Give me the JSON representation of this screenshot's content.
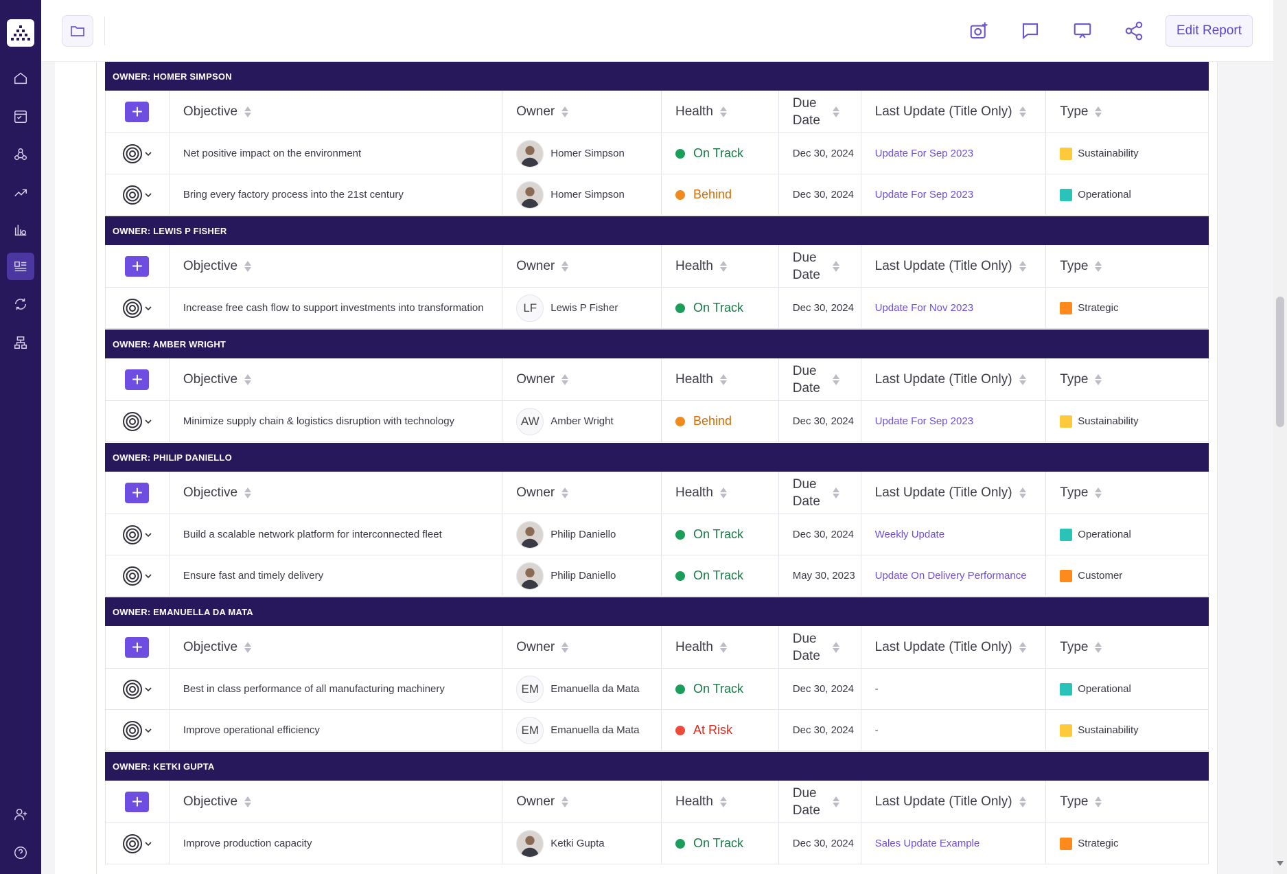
{
  "toolbar": {
    "edit_label": "Edit Report"
  },
  "columns": {
    "objective": "Objective",
    "owner": "Owner",
    "health": "Health",
    "due_line1": "Due",
    "due_line2": "Date",
    "last_update": "Last Update (Title Only)",
    "type": "Type"
  },
  "groups": [
    {
      "title": "OWNER: HOMER SIMPSON",
      "rows": [
        {
          "objective": "Net positive impact on the environment",
          "owner": "Homer Simpson",
          "avatar": "photo",
          "health": "On Track",
          "due": "Dec 30, 2024",
          "update": "Update For Sep 2023",
          "type": "Sustainability"
        },
        {
          "objective": "Bring every factory process into the 21st century",
          "owner": "Homer Simpson",
          "avatar": "photo",
          "health": "Behind",
          "due": "Dec 30, 2024",
          "update": "Update For Sep 2023",
          "type": "Operational"
        }
      ]
    },
    {
      "title": "OWNER: LEWIS P FISHER",
      "rows": [
        {
          "objective": "Increase free cash flow to support investments into transformation",
          "owner": "Lewis P Fisher",
          "avatar": "LF",
          "health": "On Track",
          "due": "Dec 30, 2024",
          "update": "Update For Nov 2023",
          "type": "Strategic"
        }
      ]
    },
    {
      "title": "OWNER: AMBER WRIGHT",
      "rows": [
        {
          "objective": "Minimize supply chain & logistics disruption with technology",
          "owner": "Amber Wright",
          "avatar": "AW",
          "health": "Behind",
          "due": "Dec 30, 2024",
          "update": "Update For Sep 2023",
          "type": "Sustainability"
        }
      ]
    },
    {
      "title": "OWNER: PHILIP DANIELLO",
      "rows": [
        {
          "objective": "Build a scalable network platform for interconnected fleet",
          "owner": "Philip Daniello",
          "avatar": "photo",
          "health": "On Track",
          "due": "Dec 30, 2024",
          "update": "Weekly Update",
          "type": "Operational"
        },
        {
          "objective": "Ensure fast and timely delivery",
          "owner": "Philip Daniello",
          "avatar": "photo",
          "health": "On Track",
          "due": "May 30, 2023",
          "update": "Update On Delivery Performance",
          "type": "Customer"
        }
      ]
    },
    {
      "title": "OWNER: EMANUELLA DA MATA",
      "rows": [
        {
          "objective": "Best in class performance of all manufacturing machinery",
          "owner": "Emanuella da Mata",
          "avatar": "EM",
          "health": "On Track",
          "due": "Dec 30, 2024",
          "update": "-",
          "type": "Operational"
        },
        {
          "objective": "Improve operational efficiency",
          "owner": "Emanuella da Mata",
          "avatar": "EM",
          "health": "At Risk",
          "due": "Dec 30, 2024",
          "update": "-",
          "type": "Sustainability"
        }
      ]
    },
    {
      "title": "OWNER: KETKI GUPTA",
      "rows": [
        {
          "objective": "Improve production capacity",
          "owner": "Ketki Gupta",
          "avatar": "photo",
          "health": "On Track",
          "due": "Dec 30, 2024",
          "update": "Sales Update Example",
          "type": "Strategic"
        }
      ]
    }
  ],
  "health_colors": {
    "On Track": "#1a9e5a",
    "Behind": "#f08a1c",
    "At Risk": "#ef4b3a"
  },
  "health_text_colors": {
    "On Track": "#177a45",
    "Behind": "#d96b00",
    "At Risk": "#d92d20"
  },
  "type_colors": {
    "Sustainability": "#ffc93c",
    "Operational": "#2ac3b8",
    "Strategic": "#ff8a1c",
    "Customer": "#ff8a1c"
  }
}
